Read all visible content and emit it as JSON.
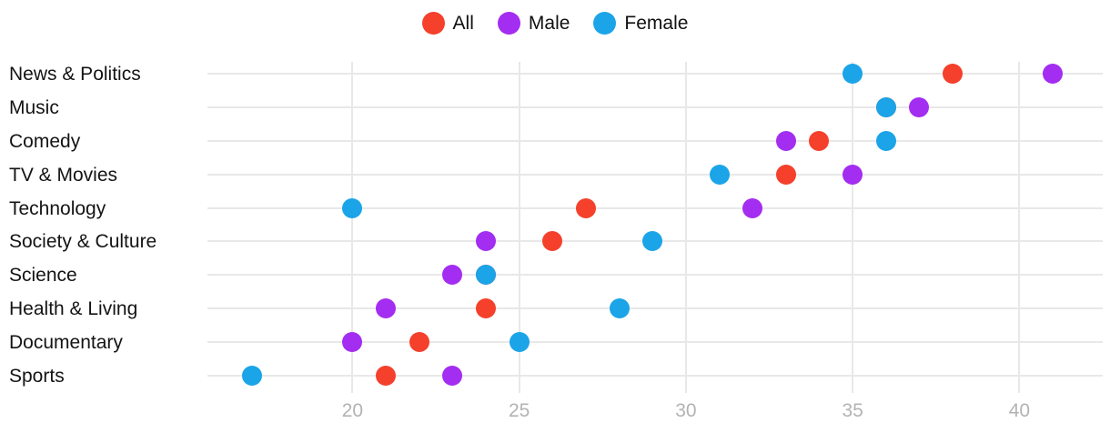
{
  "legend": {
    "position": "top-center",
    "items": [
      {
        "label": "All",
        "color": "#f5402c"
      },
      {
        "label": "Male",
        "color": "#a32df0"
      },
      {
        "label": "Female",
        "color": "#1ba4e8"
      }
    ]
  },
  "chart_data": {
    "type": "scatter",
    "variant": "horizontal-dot-plot",
    "title": "",
    "xlabel": "",
    "ylabel": "",
    "grid": true,
    "legend_position": "top-center",
    "categories": [
      "News & Politics",
      "Music",
      "Comedy",
      "TV & Movies",
      "Technology",
      "Society & Culture",
      "Science",
      "Health & Living",
      "Documentary",
      "Sports"
    ],
    "series": [
      {
        "name": "All",
        "color": "#f5402c",
        "values": [
          38,
          36,
          34,
          33,
          27,
          26,
          24,
          24,
          22,
          21
        ]
      },
      {
        "name": "Male",
        "color": "#a32df0",
        "values": [
          41,
          37,
          33,
          35,
          32,
          24,
          23,
          21,
          20,
          23
        ]
      },
      {
        "name": "Female",
        "color": "#1ba4e8",
        "values": [
          35,
          36,
          36,
          31,
          20,
          29,
          24,
          28,
          25,
          17
        ]
      }
    ],
    "x_axis": {
      "min": 15.65,
      "max": 42.5,
      "ticks": [
        "20",
        "25",
        "30",
        "35",
        "40"
      ],
      "tick_values": [
        20,
        25,
        30,
        35,
        40
      ]
    }
  },
  "styles": {
    "grid_color": "#e8e8e8",
    "tick_color": "#b3b3b3",
    "category_color": "#141414",
    "background": "#ffffff"
  }
}
